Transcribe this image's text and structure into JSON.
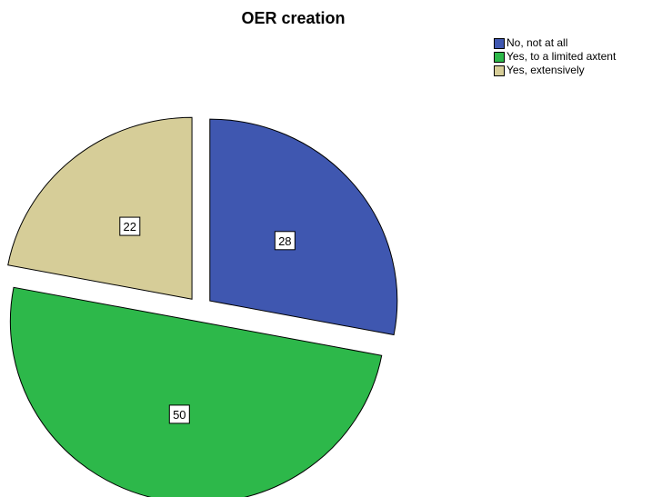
{
  "chart_data": {
    "type": "pie",
    "title": "OER creation",
    "slices": [
      {
        "label": "No, not at all",
        "value": 28,
        "color": "#3f57b0"
      },
      {
        "label": "Yes, to a limited axtent",
        "value": 50,
        "color": "#2db84a"
      },
      {
        "label": "Yes, extensively",
        "value": 22,
        "color": "#d6cd98"
      }
    ],
    "data_labels": [
      "28",
      "50",
      "22"
    ],
    "legend": {
      "position": "top-right",
      "entries": [
        "No, not at all",
        "Yes, to a limited axtent",
        "Yes, extensively"
      ]
    },
    "exploded": true
  }
}
